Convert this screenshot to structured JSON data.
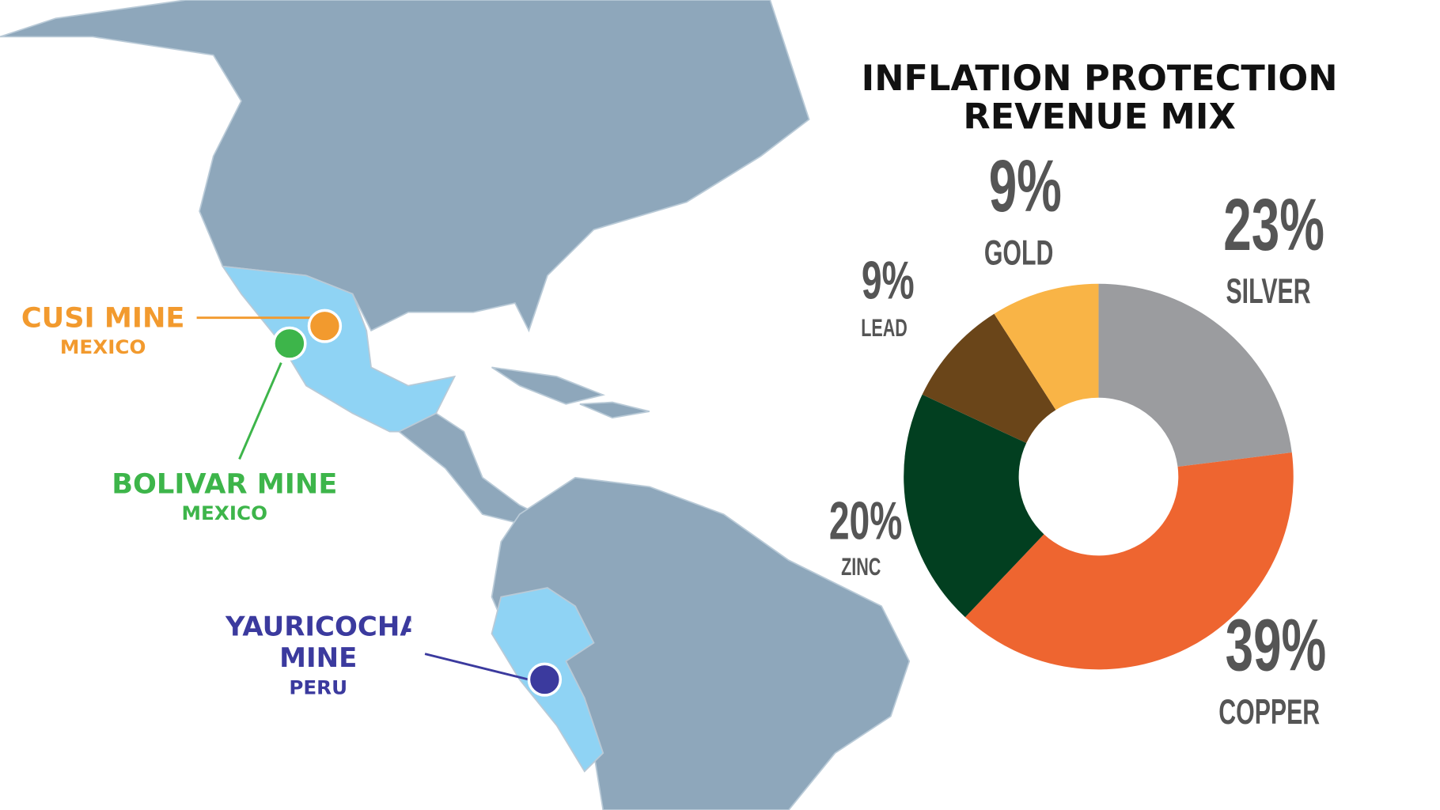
{
  "chart_data": {
    "type": "pie",
    "title": "INFLATION PROTECTION REVENUE MIX",
    "categories": [
      "SILVER",
      "COPPER",
      "ZINC",
      "LEAD",
      "GOLD"
    ],
    "values": [
      23,
      39,
      20,
      9,
      9
    ],
    "value_labels": [
      "23%",
      "39%",
      "20%",
      "9%",
      "9%"
    ],
    "colors": [
      "#9b9c9f",
      "#ee6530",
      "#023f20",
      "#6a4519",
      "#f9b446"
    ],
    "donut": true
  },
  "map": {
    "mines": [
      {
        "name": "CUSI MINE",
        "country": "MEXICO"
      },
      {
        "name": "BOLIVAR MINE",
        "country": "MEXICO"
      },
      {
        "name": "YAURICOCHA MINE",
        "country": "PERU"
      }
    ]
  }
}
